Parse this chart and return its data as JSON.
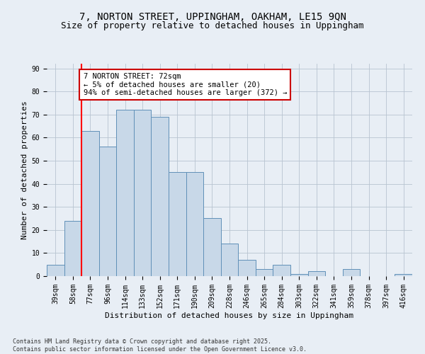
{
  "title_line1": "7, NORTON STREET, UPPINGHAM, OAKHAM, LE15 9QN",
  "title_line2": "Size of property relative to detached houses in Uppingham",
  "xlabel": "Distribution of detached houses by size in Uppingham",
  "ylabel": "Number of detached properties",
  "categories": [
    "39sqm",
    "58sqm",
    "77sqm",
    "96sqm",
    "114sqm",
    "133sqm",
    "152sqm",
    "171sqm",
    "190sqm",
    "209sqm",
    "228sqm",
    "246sqm",
    "265sqm",
    "284sqm",
    "303sqm",
    "322sqm",
    "341sqm",
    "359sqm",
    "378sqm",
    "397sqm",
    "416sqm"
  ],
  "values": [
    5,
    24,
    63,
    56,
    72,
    72,
    69,
    45,
    45,
    25,
    14,
    7,
    3,
    5,
    1,
    2,
    0,
    3,
    0,
    0,
    1
  ],
  "bar_color": "#c8d8e8",
  "bar_edge_color": "#6090b8",
  "red_line_x": 1.5,
  "annotation_text": "7 NORTON STREET: 72sqm\n← 5% of detached houses are smaller (20)\n94% of semi-detached houses are larger (372) →",
  "annotation_box_color": "#ffffff",
  "annotation_border_color": "#cc0000",
  "background_color": "#e8eef5",
  "plot_bg_color": "#e8eef5",
  "yticks": [
    0,
    10,
    20,
    30,
    40,
    50,
    60,
    70,
    80,
    90
  ],
  "ylim": [
    0,
    92
  ],
  "footer_line1": "Contains HM Land Registry data © Crown copyright and database right 2025.",
  "footer_line2": "Contains public sector information licensed under the Open Government Licence v3.0.",
  "title_fontsize": 10,
  "subtitle_fontsize": 9,
  "label_fontsize": 8,
  "tick_fontsize": 7,
  "annotation_fontsize": 7.5,
  "footer_fontsize": 6
}
